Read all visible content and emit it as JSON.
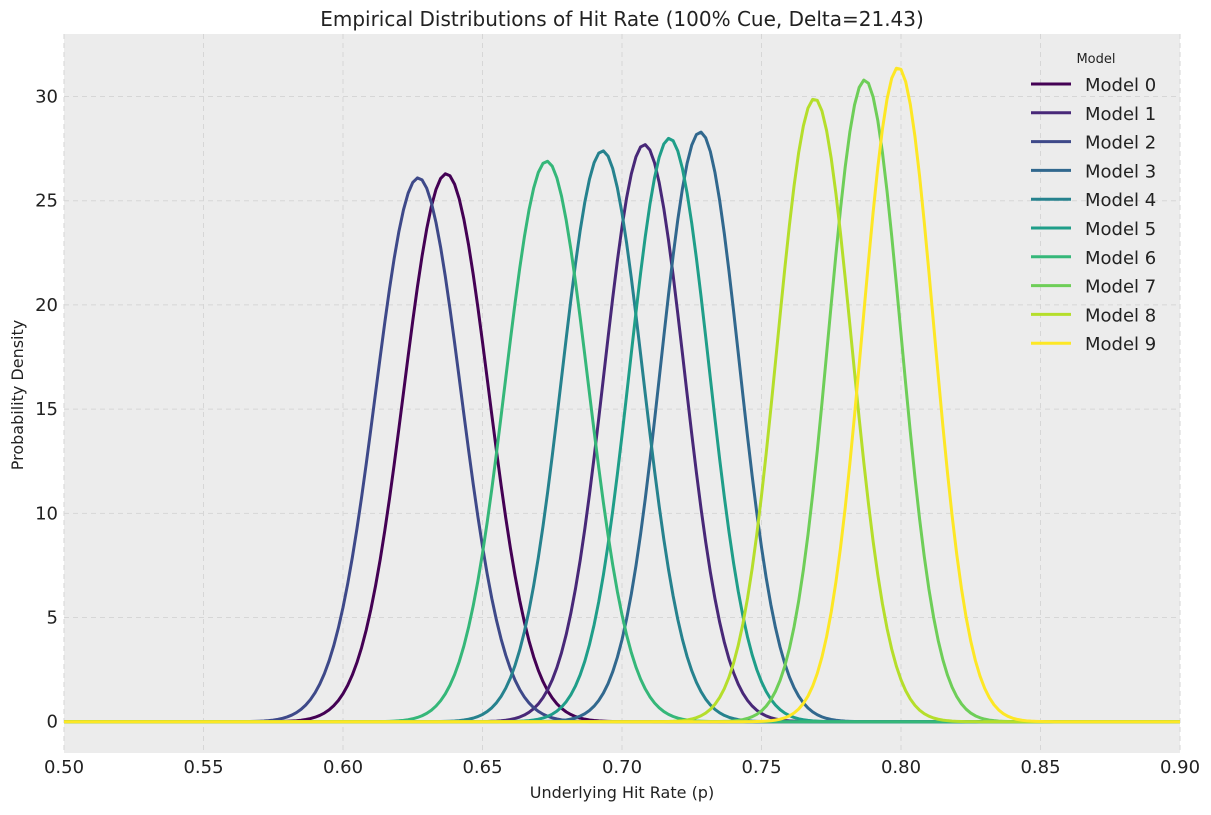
{
  "chart_data": {
    "type": "line",
    "title": "Empirical Distributions of Hit Rate (100% Cue, Delta=21.43)",
    "xlabel": "Underlying Hit Rate (p)",
    "ylabel": "Probability Density",
    "xlim": [
      0.5,
      0.9
    ],
    "ylim": [
      -1.5,
      33.0
    ],
    "xticks": [
      "0.50",
      "0.55",
      "0.60",
      "0.65",
      "0.70",
      "0.75",
      "0.80",
      "0.85",
      "0.90"
    ],
    "yticks": [
      "0",
      "5",
      "10",
      "15",
      "20",
      "25",
      "30"
    ],
    "grid": true,
    "legend": {
      "title": "Model",
      "position": "top-right"
    },
    "series": [
      {
        "name": "Model 0",
        "color": "#440154",
        "mode": 0.637,
        "peak": 26.3
      },
      {
        "name": "Model 1",
        "color": "#482878",
        "mode": 0.708,
        "peak": 27.7
      },
      {
        "name": "Model 2",
        "color": "#3e4989",
        "mode": 0.627,
        "peak": 26.1
      },
      {
        "name": "Model 3",
        "color": "#31688e",
        "mode": 0.728,
        "peak": 28.3
      },
      {
        "name": "Model 4",
        "color": "#26828e",
        "mode": 0.693,
        "peak": 27.4
      },
      {
        "name": "Model 5",
        "color": "#1f9e89",
        "mode": 0.717,
        "peak": 28.0
      },
      {
        "name": "Model 6",
        "color": "#35b779",
        "mode": 0.673,
        "peak": 26.9
      },
      {
        "name": "Model 7",
        "color": "#6ece58",
        "mode": 0.787,
        "peak": 30.8
      },
      {
        "name": "Model 8",
        "color": "#b5de2b",
        "mode": 0.769,
        "peak": 29.9
      },
      {
        "name": "Model 9",
        "color": "#fde725",
        "mode": 0.799,
        "peak": 31.4
      }
    ]
  }
}
